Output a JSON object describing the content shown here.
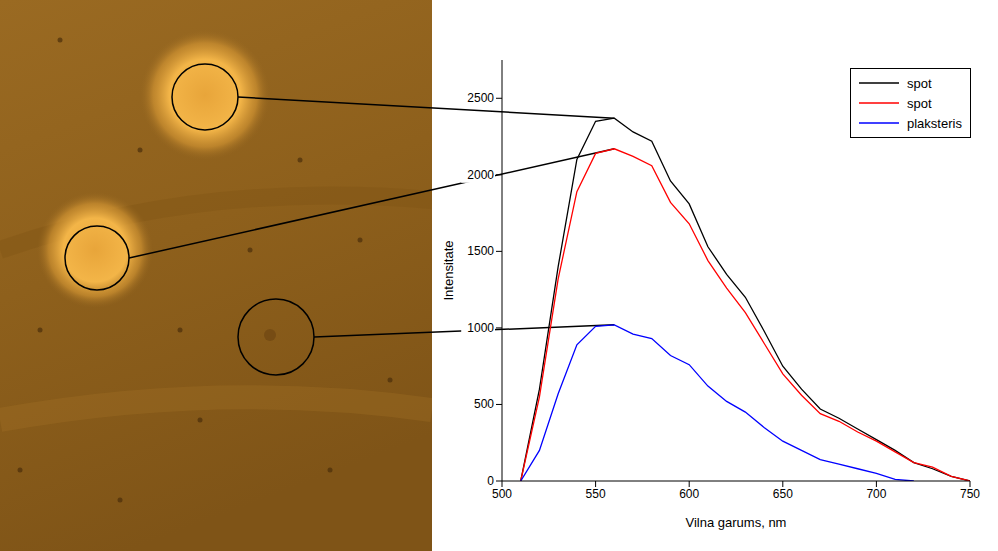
{
  "chart_data": {
    "type": "line",
    "x_label": "Vilna garums, nm",
    "y_label": "Intensitate",
    "x": [
      510,
      520,
      530,
      540,
      550,
      560,
      570,
      580,
      590,
      600,
      610,
      620,
      630,
      640,
      650,
      660,
      670,
      680,
      690,
      700,
      710,
      720,
      730,
      740,
      750
    ],
    "series": [
      {
        "name": "spot",
        "color": "#000000",
        "values": [
          0,
          600,
          1400,
          2100,
          2350,
          2370,
          2280,
          2220,
          1960,
          1810,
          1530,
          1350,
          1200,
          980,
          750,
          600,
          470,
          410,
          340,
          270,
          200,
          120,
          80,
          30,
          0
        ]
      },
      {
        "name": "spot",
        "color": "#ff0000",
        "values": [
          0,
          550,
          1320,
          1890,
          2140,
          2170,
          2120,
          2060,
          1820,
          1680,
          1440,
          1260,
          1100,
          900,
          700,
          560,
          440,
          390,
          320,
          260,
          190,
          120,
          90,
          30,
          0
        ]
      },
      {
        "name": "plaksteris",
        "color": "#0000ff",
        "values": [
          0,
          200,
          570,
          890,
          1010,
          1020,
          960,
          930,
          820,
          760,
          620,
          520,
          450,
          350,
          260,
          200,
          140,
          110,
          80,
          50,
          10,
          0,
          null,
          null,
          null
        ]
      }
    ],
    "xlim": [
      500,
      750
    ],
    "xticks": [
      500,
      550,
      600,
      650,
      700,
      750
    ],
    "ylim": [
      0,
      2750
    ],
    "yticks": [
      0,
      500,
      1000,
      1500,
      2000,
      2500
    ],
    "legend": "upper right"
  }
}
